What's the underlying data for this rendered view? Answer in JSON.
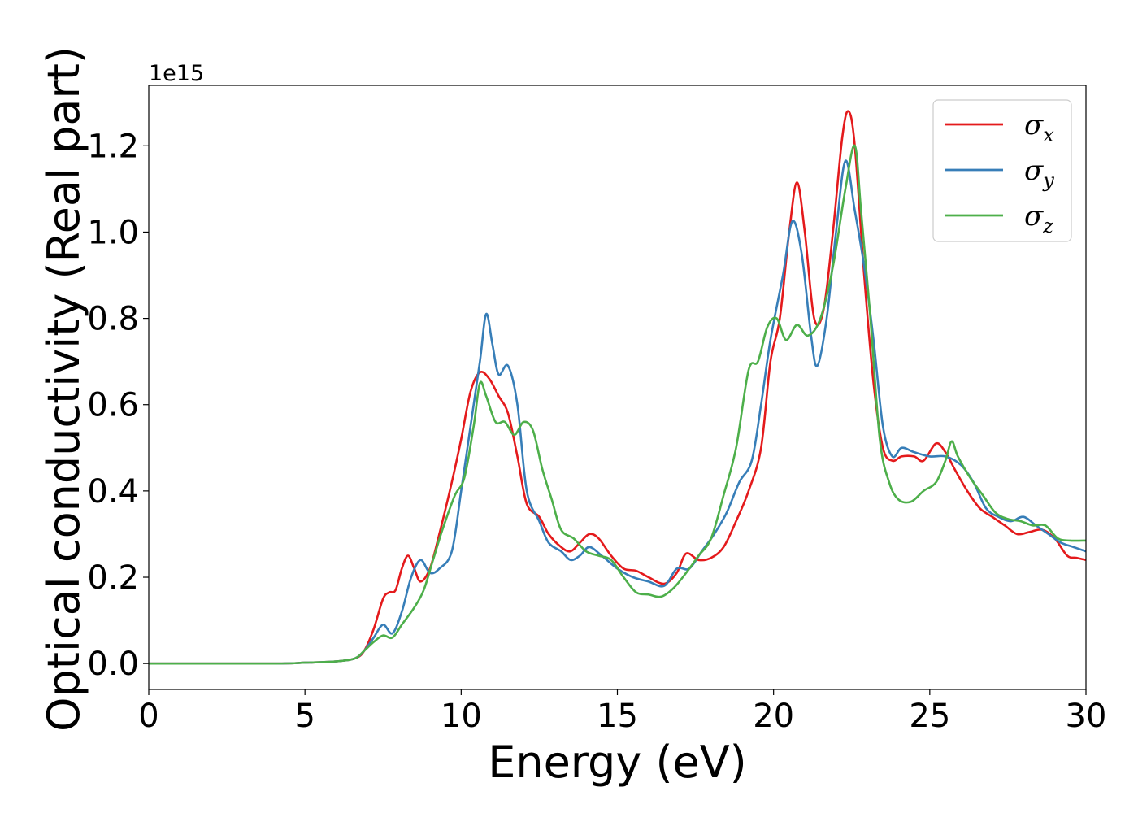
{
  "chart_data": {
    "type": "line",
    "xlabel": "Energy (eV)",
    "ylabel": "Optical conductivity (Real part)",
    "y_offset_label": "1e15",
    "xlim": [
      0,
      30
    ],
    "ylim": [
      -0.06,
      1.34
    ],
    "x_ticks": [
      0,
      5,
      10,
      15,
      20,
      25,
      30
    ],
    "x_tick_labels": [
      "0",
      "5",
      "10",
      "15",
      "20",
      "25",
      "30"
    ],
    "y_ticks": [
      0.0,
      0.2,
      0.4,
      0.6,
      0.8,
      1.0,
      1.2
    ],
    "y_tick_labels": [
      "0.0",
      "0.2",
      "0.4",
      "0.6",
      "0.8",
      "1.0",
      "1.2"
    ],
    "grid": false,
    "legend_position": "top-right",
    "series": [
      {
        "name": "σx",
        "legend_base": "σ",
        "legend_sub": "x",
        "color": "#e41a1c",
        "points": [
          [
            0,
            0
          ],
          [
            4,
            0.0
          ],
          [
            5,
            0.002
          ],
          [
            6,
            0.005
          ],
          [
            6.6,
            0.012
          ],
          [
            6.9,
            0.03
          ],
          [
            7.2,
            0.08
          ],
          [
            7.5,
            0.15
          ],
          [
            7.7,
            0.165
          ],
          [
            7.9,
            0.17
          ],
          [
            8.1,
            0.22
          ],
          [
            8.3,
            0.25
          ],
          [
            8.5,
            0.22
          ],
          [
            8.7,
            0.19
          ],
          [
            9.0,
            0.22
          ],
          [
            9.3,
            0.3
          ],
          [
            9.7,
            0.42
          ],
          [
            10.0,
            0.52
          ],
          [
            10.3,
            0.63
          ],
          [
            10.6,
            0.675
          ],
          [
            10.9,
            0.66
          ],
          [
            11.2,
            0.62
          ],
          [
            11.5,
            0.58
          ],
          [
            11.8,
            0.48
          ],
          [
            12.1,
            0.37
          ],
          [
            12.5,
            0.34
          ],
          [
            12.8,
            0.3
          ],
          [
            13.2,
            0.27
          ],
          [
            13.5,
            0.26
          ],
          [
            13.8,
            0.28
          ],
          [
            14.1,
            0.3
          ],
          [
            14.4,
            0.29
          ],
          [
            14.8,
            0.25
          ],
          [
            15.2,
            0.22
          ],
          [
            15.6,
            0.215
          ],
          [
            16.0,
            0.2
          ],
          [
            16.5,
            0.185
          ],
          [
            16.9,
            0.21
          ],
          [
            17.2,
            0.255
          ],
          [
            17.6,
            0.24
          ],
          [
            18.0,
            0.245
          ],
          [
            18.4,
            0.27
          ],
          [
            18.8,
            0.33
          ],
          [
            19.2,
            0.4
          ],
          [
            19.6,
            0.5
          ],
          [
            19.9,
            0.7
          ],
          [
            20.2,
            0.8
          ],
          [
            20.5,
            1.0
          ],
          [
            20.75,
            1.115
          ],
          [
            21.0,
            1.0
          ],
          [
            21.3,
            0.8
          ],
          [
            21.6,
            0.82
          ],
          [
            21.9,
            1.0
          ],
          [
            22.2,
            1.22
          ],
          [
            22.4,
            1.28
          ],
          [
            22.6,
            1.2
          ],
          [
            22.9,
            0.9
          ],
          [
            23.2,
            0.65
          ],
          [
            23.5,
            0.5
          ],
          [
            23.8,
            0.47
          ],
          [
            24.1,
            0.48
          ],
          [
            24.5,
            0.48
          ],
          [
            24.8,
            0.47
          ],
          [
            25.2,
            0.51
          ],
          [
            25.5,
            0.49
          ],
          [
            25.8,
            0.45
          ],
          [
            26.2,
            0.4
          ],
          [
            26.6,
            0.36
          ],
          [
            27.0,
            0.34
          ],
          [
            27.4,
            0.32
          ],
          [
            27.8,
            0.3
          ],
          [
            28.2,
            0.305
          ],
          [
            28.6,
            0.31
          ],
          [
            29.0,
            0.29
          ],
          [
            29.4,
            0.25
          ],
          [
            29.7,
            0.245
          ],
          [
            30.0,
            0.24
          ]
        ]
      },
      {
        "name": "σy",
        "legend_base": "σ",
        "legend_sub": "y",
        "color": "#377eb8",
        "points": [
          [
            0,
            0
          ],
          [
            4,
            0.0
          ],
          [
            5,
            0.002
          ],
          [
            6,
            0.005
          ],
          [
            6.6,
            0.012
          ],
          [
            6.9,
            0.03
          ],
          [
            7.2,
            0.06
          ],
          [
            7.5,
            0.09
          ],
          [
            7.8,
            0.07
          ],
          [
            8.1,
            0.12
          ],
          [
            8.4,
            0.2
          ],
          [
            8.7,
            0.24
          ],
          [
            9.0,
            0.21
          ],
          [
            9.3,
            0.22
          ],
          [
            9.7,
            0.26
          ],
          [
            10.0,
            0.4
          ],
          [
            10.3,
            0.55
          ],
          [
            10.6,
            0.7
          ],
          [
            10.8,
            0.81
          ],
          [
            11.0,
            0.74
          ],
          [
            11.2,
            0.67
          ],
          [
            11.5,
            0.69
          ],
          [
            11.8,
            0.6
          ],
          [
            12.1,
            0.4
          ],
          [
            12.5,
            0.33
          ],
          [
            12.8,
            0.28
          ],
          [
            13.2,
            0.26
          ],
          [
            13.5,
            0.24
          ],
          [
            13.8,
            0.25
          ],
          [
            14.1,
            0.27
          ],
          [
            14.5,
            0.25
          ],
          [
            15.0,
            0.22
          ],
          [
            15.5,
            0.2
          ],
          [
            16.0,
            0.19
          ],
          [
            16.5,
            0.18
          ],
          [
            16.9,
            0.22
          ],
          [
            17.3,
            0.22
          ],
          [
            17.7,
            0.26
          ],
          [
            18.1,
            0.3
          ],
          [
            18.5,
            0.35
          ],
          [
            18.9,
            0.42
          ],
          [
            19.3,
            0.47
          ],
          [
            19.6,
            0.6
          ],
          [
            19.9,
            0.75
          ],
          [
            20.3,
            0.9
          ],
          [
            20.6,
            1.025
          ],
          [
            20.9,
            0.95
          ],
          [
            21.2,
            0.76
          ],
          [
            21.4,
            0.69
          ],
          [
            21.7,
            0.8
          ],
          [
            22.0,
            1.0
          ],
          [
            22.3,
            1.165
          ],
          [
            22.6,
            1.05
          ],
          [
            22.9,
            0.92
          ],
          [
            23.2,
            0.75
          ],
          [
            23.5,
            0.55
          ],
          [
            23.8,
            0.48
          ],
          [
            24.1,
            0.5
          ],
          [
            24.5,
            0.49
          ],
          [
            25.0,
            0.48
          ],
          [
            25.5,
            0.48
          ],
          [
            26.0,
            0.46
          ],
          [
            26.4,
            0.42
          ],
          [
            26.8,
            0.36
          ],
          [
            27.2,
            0.34
          ],
          [
            27.6,
            0.33
          ],
          [
            28.0,
            0.34
          ],
          [
            28.4,
            0.32
          ],
          [
            28.8,
            0.3
          ],
          [
            29.2,
            0.28
          ],
          [
            29.6,
            0.27
          ],
          [
            30.0,
            0.26
          ]
        ]
      },
      {
        "name": "σz",
        "legend_base": "σ",
        "legend_sub": "z",
        "color": "#4daf4a",
        "points": [
          [
            0,
            0
          ],
          [
            4,
            0.0
          ],
          [
            5,
            0.002
          ],
          [
            6,
            0.005
          ],
          [
            6.6,
            0.012
          ],
          [
            6.9,
            0.03
          ],
          [
            7.2,
            0.05
          ],
          [
            7.5,
            0.065
          ],
          [
            7.8,
            0.06
          ],
          [
            8.1,
            0.09
          ],
          [
            8.5,
            0.13
          ],
          [
            8.8,
            0.17
          ],
          [
            9.1,
            0.24
          ],
          [
            9.4,
            0.31
          ],
          [
            9.8,
            0.39
          ],
          [
            10.1,
            0.43
          ],
          [
            10.4,
            0.55
          ],
          [
            10.6,
            0.65
          ],
          [
            10.8,
            0.62
          ],
          [
            11.1,
            0.56
          ],
          [
            11.4,
            0.56
          ],
          [
            11.7,
            0.53
          ],
          [
            12.0,
            0.56
          ],
          [
            12.3,
            0.54
          ],
          [
            12.6,
            0.45
          ],
          [
            12.9,
            0.38
          ],
          [
            13.2,
            0.31
          ],
          [
            13.6,
            0.29
          ],
          [
            14.0,
            0.26
          ],
          [
            14.4,
            0.25
          ],
          [
            14.8,
            0.24
          ],
          [
            15.2,
            0.2
          ],
          [
            15.6,
            0.165
          ],
          [
            16.0,
            0.16
          ],
          [
            16.4,
            0.155
          ],
          [
            16.8,
            0.175
          ],
          [
            17.2,
            0.21
          ],
          [
            17.6,
            0.25
          ],
          [
            18.0,
            0.29
          ],
          [
            18.4,
            0.39
          ],
          [
            18.8,
            0.5
          ],
          [
            19.2,
            0.68
          ],
          [
            19.5,
            0.7
          ],
          [
            19.8,
            0.78
          ],
          [
            20.1,
            0.8
          ],
          [
            20.4,
            0.75
          ],
          [
            20.75,
            0.785
          ],
          [
            21.1,
            0.76
          ],
          [
            21.5,
            0.8
          ],
          [
            21.9,
            0.92
          ],
          [
            22.3,
            1.1
          ],
          [
            22.6,
            1.2
          ],
          [
            22.8,
            1.05
          ],
          [
            23.1,
            0.8
          ],
          [
            23.4,
            0.52
          ],
          [
            23.7,
            0.42
          ],
          [
            24.0,
            0.38
          ],
          [
            24.4,
            0.375
          ],
          [
            24.8,
            0.4
          ],
          [
            25.2,
            0.42
          ],
          [
            25.5,
            0.47
          ],
          [
            25.7,
            0.515
          ],
          [
            25.9,
            0.48
          ],
          [
            26.3,
            0.43
          ],
          [
            26.7,
            0.39
          ],
          [
            27.1,
            0.35
          ],
          [
            27.5,
            0.335
          ],
          [
            27.9,
            0.33
          ],
          [
            28.3,
            0.32
          ],
          [
            28.7,
            0.32
          ],
          [
            29.1,
            0.29
          ],
          [
            29.5,
            0.285
          ],
          [
            30.0,
            0.285
          ]
        ]
      }
    ]
  }
}
